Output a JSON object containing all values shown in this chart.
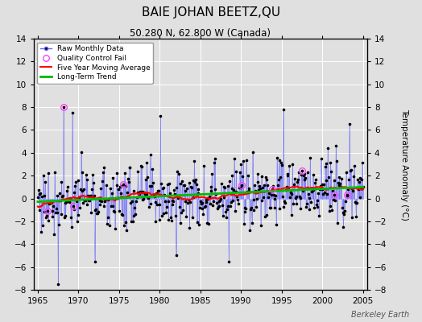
{
  "title": "BAIE JOHAN BEETZ,QU",
  "subtitle": "50.280 N, 62.800 W (Canada)",
  "ylabel": "Temperature Anomaly (°C)",
  "xlim": [
    1964.5,
    2005.5
  ],
  "ylim": [
    -8,
    14
  ],
  "yticks": [
    -8,
    -6,
    -4,
    -2,
    0,
    2,
    4,
    6,
    8,
    10,
    12,
    14
  ],
  "xticks": [
    1965,
    1970,
    1975,
    1980,
    1985,
    1990,
    1995,
    2000,
    2005
  ],
  "line_color": "#6666ff",
  "dot_color": "#000000",
  "ma_color": "#ff0000",
  "trend_color": "#00bb00",
  "qc_color": "#ff44ff",
  "background_color": "#e0e0e0",
  "grid_color": "#ffffff",
  "watermark": "Berkeley Earth"
}
